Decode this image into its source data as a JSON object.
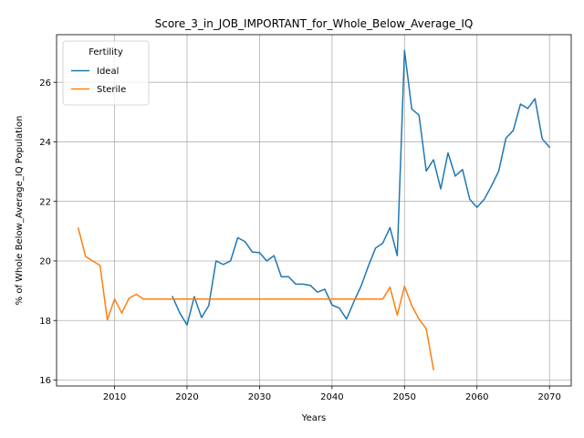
{
  "chart_data": {
    "type": "line",
    "title": "Score_3_in_JOB_IMPORTANT_for_Whole_Below_Average_IQ",
    "xlabel": "Years",
    "ylabel": "% of Whole Below_Average_IQ Population",
    "xlim": [
      2002,
      2073
    ],
    "ylim": [
      15.8,
      27.6
    ],
    "xticks": [
      2010,
      2020,
      2030,
      2040,
      2050,
      2060,
      2070
    ],
    "yticks": [
      16,
      18,
      20,
      22,
      24,
      26
    ],
    "grid": true,
    "legend": {
      "title": "Fertility",
      "placement": "top-left"
    },
    "series": [
      {
        "name": "Ideal",
        "color": "#1f77b4",
        "x": [
          2018,
          2019,
          2020,
          2021,
          2022,
          2023,
          2024,
          2025,
          2026,
          2027,
          2028,
          2029,
          2030,
          2031,
          2032,
          2033,
          2034,
          2035,
          2036,
          2037,
          2038,
          2039,
          2040,
          2041,
          2042,
          2043,
          2044,
          2045,
          2046,
          2047,
          2048,
          2049,
          2050,
          2051,
          2052,
          2053,
          2054,
          2055,
          2056,
          2057,
          2058,
          2059,
          2060,
          2061,
          2062,
          2063,
          2064,
          2065,
          2066,
          2067,
          2068,
          2069,
          2070
        ],
        "y": [
          18.8,
          18.25,
          17.85,
          18.8,
          18.1,
          18.5,
          20.0,
          19.88,
          20.0,
          20.78,
          20.65,
          20.3,
          20.28,
          20.0,
          20.18,
          19.47,
          19.47,
          19.22,
          19.22,
          19.18,
          18.95,
          19.05,
          18.52,
          18.42,
          18.05,
          18.62,
          19.15,
          19.82,
          20.43,
          20.6,
          21.12,
          20.18,
          27.07,
          25.1,
          24.9,
          23.02,
          23.4,
          22.42,
          23.63,
          22.85,
          23.07,
          22.07,
          21.8,
          22.07,
          22.52,
          23.02,
          24.13,
          24.38,
          25.27,
          25.12,
          25.45,
          24.1,
          23.82
        ]
      },
      {
        "name": "Sterile",
        "color": "#ff7f0e",
        "x": [
          2005,
          2006,
          2007,
          2008,
          2009,
          2010,
          2011,
          2012,
          2013,
          2014,
          2015,
          2016,
          2017,
          2018,
          2019,
          2020,
          2021,
          2022,
          2023,
          2024,
          2025,
          2026,
          2027,
          2028,
          2029,
          2030,
          2031,
          2032,
          2033,
          2034,
          2035,
          2036,
          2037,
          2038,
          2039,
          2040,
          2041,
          2042,
          2043,
          2044,
          2045,
          2046,
          2047,
          2048,
          2049,
          2050,
          2051,
          2052,
          2053,
          2054
        ],
        "y": [
          21.1,
          20.15,
          20.0,
          19.85,
          18.02,
          18.72,
          18.25,
          18.75,
          18.88,
          18.72,
          18.72,
          18.72,
          18.72,
          18.72,
          18.72,
          18.72,
          18.72,
          18.72,
          18.72,
          18.72,
          18.72,
          18.72,
          18.72,
          18.72,
          18.72,
          18.72,
          18.72,
          18.72,
          18.72,
          18.72,
          18.72,
          18.72,
          18.72,
          18.72,
          18.72,
          18.72,
          18.72,
          18.72,
          18.72,
          18.72,
          18.72,
          18.72,
          18.72,
          19.12,
          18.18,
          19.15,
          18.5,
          18.05,
          17.72,
          16.35
        ]
      }
    ]
  }
}
